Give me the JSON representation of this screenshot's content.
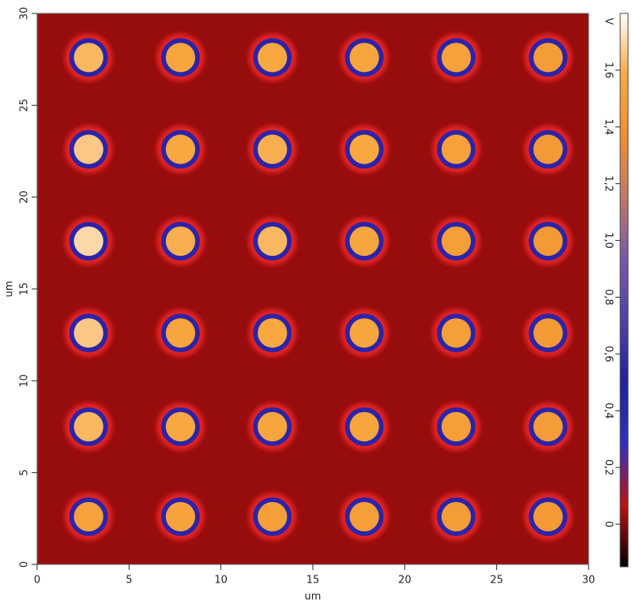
{
  "chart_data": {
    "type": "image",
    "xlabel": "um",
    "ylabel": "um",
    "xlim": [
      0,
      30
    ],
    "ylim": [
      0,
      30
    ],
    "xticks": [
      0,
      5,
      10,
      15,
      20,
      25,
      30
    ],
    "yticks": [
      0,
      5,
      10,
      15,
      20,
      25,
      30
    ],
    "background_value": 0.02,
    "spots": {
      "x": [
        2.8,
        7.8,
        12.8,
        17.8,
        22.8,
        27.8,
        2.8,
        7.8,
        12.8,
        17.8,
        22.8,
        27.8,
        2.8,
        7.8,
        12.8,
        17.8,
        22.8,
        27.8,
        2.8,
        7.8,
        12.8,
        17.8,
        22.8,
        27.8,
        2.8,
        7.8,
        12.8,
        17.8,
        22.8,
        27.8,
        2.8,
        7.8,
        12.8,
        17.8,
        22.8,
        27.8
      ],
      "y": [
        27.6,
        27.6,
        27.6,
        27.6,
        27.6,
        27.6,
        22.6,
        22.6,
        22.6,
        22.6,
        22.6,
        22.6,
        17.6,
        17.6,
        17.6,
        17.6,
        17.6,
        17.6,
        12.6,
        12.6,
        12.6,
        12.6,
        12.6,
        12.6,
        7.5,
        7.5,
        7.5,
        7.5,
        7.5,
        7.5,
        2.6,
        2.6,
        2.6,
        2.6,
        2.6,
        2.6
      ],
      "values": [
        1.62,
        1.56,
        1.58,
        1.56,
        1.52,
        1.48,
        1.66,
        1.58,
        1.6,
        1.58,
        1.52,
        1.46,
        1.7,
        1.6,
        1.62,
        1.56,
        1.5,
        1.45,
        1.66,
        1.56,
        1.58,
        1.56,
        1.5,
        1.45,
        1.62,
        1.58,
        1.56,
        1.56,
        1.5,
        1.48,
        1.52,
        1.54,
        1.5,
        1.5,
        1.48,
        1.46
      ]
    },
    "colorbar": {
      "label": "V",
      "lim": [
        -0.15,
        1.8
      ],
      "ticks": [
        0,
        {
          "value": 0.2,
          "label": "0,2"
        },
        {
          "value": 0.4,
          "label": "0,4"
        },
        {
          "value": 0.6,
          "label": "0,6"
        },
        {
          "value": 0.8,
          "label": "0,8"
        },
        {
          "value": 1.0,
          "label": "1,0"
        },
        {
          "value": 1.2,
          "label": "1,2"
        },
        {
          "value": 1.4,
          "label": "1,4"
        },
        {
          "value": 1.6,
          "label": "1,6"
        }
      ],
      "colors": [
        "#000000",
        "#c01010",
        "#3030c0",
        "#2020a0",
        "#5040a8",
        "#7858a8",
        "#c07868",
        "#f09030",
        "#f8a840",
        "#ffffff"
      ]
    }
  }
}
